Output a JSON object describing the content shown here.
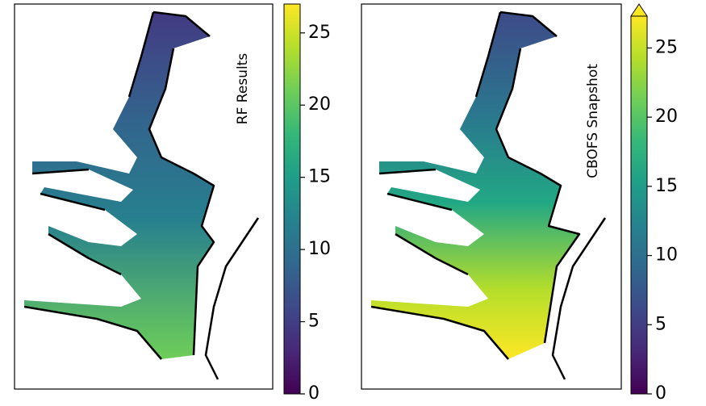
{
  "panels": [
    {
      "label": "RF Results",
      "colormap": "viridis",
      "colorbar": {
        "lim": [
          0,
          27
        ],
        "ticks": [
          0,
          5,
          10,
          15,
          20,
          25
        ],
        "extend": "neither"
      }
    },
    {
      "label": "CBOFS Snapshot",
      "colormap": "viridis",
      "colorbar": {
        "lim": [
          0,
          27.3
        ],
        "ticks": [
          0,
          5,
          10,
          15,
          20,
          25
        ],
        "extend": "max"
      }
    }
  ]
}
